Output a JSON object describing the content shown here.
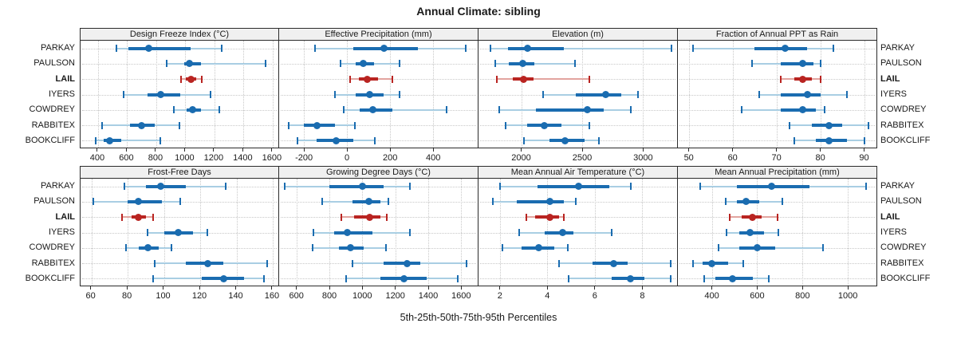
{
  "title": "Annual Climate: sibling",
  "caption": "5th-25th-50th-75th-95th Percentiles",
  "sites": [
    "PARKAY",
    "PAULSON",
    "LAIL",
    "IYERS",
    "COWDREY",
    "RABBITEX",
    "BOOKCLIFF"
  ],
  "highlight_site": "LAIL",
  "colors": {
    "series": "#1a6cb0",
    "series_light": "#a9cee3",
    "highlight": "#b92421",
    "highlight_light": "#e2a49f",
    "grid": "#c8c8c8",
    "header_bg": "#f0f0f0",
    "border": "#2b2b2b"
  },
  "percentile_order": [
    "5th",
    "25th",
    "50th",
    "75th",
    "95th"
  ],
  "chart_data": [
    {
      "type": "dot-interval",
      "title": "Design Freeze Index (°C)",
      "xlim": [
        280,
        1650
      ],
      "ticks": [
        400,
        600,
        800,
        1000,
        1200,
        1400,
        1600
      ],
      "series": [
        {
          "site": "PARKAY",
          "values": [
            525,
            610,
            750,
            1035,
            1250
          ]
        },
        {
          "site": "PAULSON",
          "values": [
            870,
            990,
            1030,
            1110,
            1550
          ]
        },
        {
          "site": "LAIL",
          "values": [
            970,
            1005,
            1040,
            1075,
            1110
          ]
        },
        {
          "site": "IYERS",
          "values": [
            575,
            740,
            830,
            965,
            1175
          ]
        },
        {
          "site": "COWDREY",
          "values": [
            920,
            1010,
            1050,
            1110,
            1235
          ]
        },
        {
          "site": "RABBITEX",
          "values": [
            430,
            620,
            700,
            790,
            960
          ]
        },
        {
          "site": "BOOKCLIFF",
          "values": [
            385,
            440,
            480,
            560,
            830
          ]
        }
      ]
    },
    {
      "type": "dot-interval",
      "title": "Effective Precipitation (mm)",
      "xlim": [
        -315,
        610
      ],
      "ticks": [
        -200,
        0,
        200,
        400
      ],
      "series": [
        {
          "site": "PARKAY",
          "values": [
            -150,
            30,
            170,
            330,
            550
          ]
        },
        {
          "site": "PAULSON",
          "values": [
            -30,
            40,
            75,
            125,
            245
          ]
        },
        {
          "site": "LAIL",
          "values": [
            15,
            55,
            95,
            145,
            210
          ]
        },
        {
          "site": "IYERS",
          "values": [
            -55,
            40,
            105,
            170,
            245
          ]
        },
        {
          "site": "COWDREY",
          "values": [
            -15,
            60,
            120,
            210,
            460
          ]
        },
        {
          "site": "RABBITEX",
          "values": [
            -270,
            -200,
            -140,
            -55,
            35
          ]
        },
        {
          "site": "BOOKCLIFF",
          "values": [
            -230,
            -140,
            -50,
            30,
            130
          ]
        }
      ]
    },
    {
      "type": "dot-interval",
      "title": "Elevation (m)",
      "xlim": [
        1650,
        3285
      ],
      "ticks": [
        2000,
        2500,
        3000
      ],
      "series": [
        {
          "site": "PARKAY",
          "values": [
            1750,
            1890,
            2050,
            2350,
            3230
          ]
        },
        {
          "site": "PAULSON",
          "values": [
            1790,
            1900,
            2010,
            2110,
            2440
          ]
        },
        {
          "site": "LAIL",
          "values": [
            1800,
            1930,
            2020,
            2100,
            2560
          ]
        },
        {
          "site": "IYERS",
          "values": [
            2180,
            2450,
            2690,
            2820,
            2960
          ]
        },
        {
          "site": "COWDREY",
          "values": [
            1820,
            2120,
            2540,
            2680,
            2900
          ]
        },
        {
          "site": "RABBITEX",
          "values": [
            1870,
            2050,
            2190,
            2330,
            2560
          ]
        },
        {
          "site": "BOOKCLIFF",
          "values": [
            2020,
            2230,
            2360,
            2520,
            2640
          ]
        }
      ]
    },
    {
      "type": "dot-interval",
      "title": "Fraction of Annual PPT as Rain",
      "xlim": [
        47.5,
        93
      ],
      "ticks": [
        50,
        60,
        70,
        80,
        90
      ],
      "series": [
        {
          "site": "PARKAY",
          "values": [
            51,
            65,
            72,
            77,
            83
          ]
        },
        {
          "site": "PAULSON",
          "values": [
            64.5,
            71,
            76,
            78.5,
            80
          ]
        },
        {
          "site": "LAIL",
          "values": [
            71,
            74,
            76,
            78,
            80
          ]
        },
        {
          "site": "IYERS",
          "values": [
            66,
            71,
            77,
            80,
            86
          ]
        },
        {
          "site": "COWDREY",
          "values": [
            62,
            71,
            76,
            79,
            81
          ]
        },
        {
          "site": "RABBITEX",
          "values": [
            73,
            78,
            82,
            85,
            91
          ]
        },
        {
          "site": "BOOKCLIFF",
          "values": [
            74,
            79,
            82,
            86,
            90
          ]
        }
      ]
    },
    {
      "type": "dot-interval",
      "title": "Frost-Free Days",
      "xlim": [
        54,
        164
      ],
      "ticks": [
        60,
        80,
        100,
        120,
        140,
        160
      ],
      "series": [
        {
          "site": "PARKAY",
          "values": [
            78,
            90,
            98,
            112,
            134
          ]
        },
        {
          "site": "PAULSON",
          "values": [
            61,
            80,
            86,
            99,
            109
          ]
        },
        {
          "site": "LAIL",
          "values": [
            77,
            82,
            86,
            90,
            94
          ]
        },
        {
          "site": "IYERS",
          "values": [
            91,
            100,
            108,
            116,
            124
          ]
        },
        {
          "site": "COWDREY",
          "values": [
            79,
            86,
            91,
            97,
            104
          ]
        },
        {
          "site": "RABBITEX",
          "values": [
            95,
            112,
            124,
            133,
            157
          ]
        },
        {
          "site": "BOOKCLIFF",
          "values": [
            94,
            121,
            133,
            144,
            155
          ]
        }
      ]
    },
    {
      "type": "dot-interval",
      "title": "Growing Degree Days (°C)",
      "xlim": [
        495,
        1705
      ],
      "ticks": [
        600,
        800,
        1000,
        1200,
        1400,
        1600
      ],
      "series": [
        {
          "site": "PARKAY",
          "values": [
            530,
            800,
            1000,
            1130,
            1290
          ]
        },
        {
          "site": "PAULSON",
          "values": [
            755,
            940,
            1040,
            1110,
            1160
          ]
        },
        {
          "site": "LAIL",
          "values": [
            870,
            950,
            1045,
            1110,
            1150
          ]
        },
        {
          "site": "IYERS",
          "values": [
            705,
            830,
            910,
            1060,
            1290
          ]
        },
        {
          "site": "COWDREY",
          "values": [
            700,
            860,
            930,
            1010,
            1145
          ]
        },
        {
          "site": "RABBITEX",
          "values": [
            940,
            1130,
            1270,
            1350,
            1630
          ]
        },
        {
          "site": "BOOKCLIFF",
          "values": [
            900,
            1110,
            1250,
            1390,
            1580
          ]
        }
      ]
    },
    {
      "type": "dot-interval",
      "title": "Mean Annual Air Temperature (°C)",
      "xlim": [
        1.1,
        9.5
      ],
      "ticks": [
        2,
        4,
        6,
        8
      ],
      "series": [
        {
          "site": "PARKAY",
          "values": [
            2.0,
            3.6,
            5.3,
            6.6,
            7.5
          ]
        },
        {
          "site": "PAULSON",
          "values": [
            1.7,
            2.7,
            4.1,
            4.7,
            5.2
          ]
        },
        {
          "site": "LAIL",
          "values": [
            3.1,
            3.5,
            4.1,
            4.5,
            4.7
          ]
        },
        {
          "site": "IYERS",
          "values": [
            2.8,
            3.9,
            4.65,
            5.1,
            6.7
          ]
        },
        {
          "site": "COWDREY",
          "values": [
            2.1,
            2.9,
            3.65,
            4.3,
            4.85
          ]
        },
        {
          "site": "RABBITEX",
          "values": [
            4.5,
            5.9,
            6.8,
            7.4,
            9.2
          ]
        },
        {
          "site": "BOOKCLIFF",
          "values": [
            4.9,
            6.7,
            7.5,
            8.1,
            9.2
          ]
        }
      ]
    },
    {
      "type": "dot-interval",
      "title": "Mean Annual Precipitation (mm)",
      "xlim": [
        250,
        1130
      ],
      "ticks": [
        400,
        600,
        800,
        1000
      ],
      "series": [
        {
          "site": "PARKAY",
          "values": [
            350,
            510,
            665,
            830,
            1080
          ]
        },
        {
          "site": "PAULSON",
          "values": [
            460,
            510,
            550,
            610,
            710
          ]
        },
        {
          "site": "LAIL",
          "values": [
            480,
            530,
            580,
            620,
            690
          ]
        },
        {
          "site": "IYERS",
          "values": [
            465,
            520,
            570,
            630,
            695
          ]
        },
        {
          "site": "COWDREY",
          "values": [
            430,
            520,
            600,
            680,
            890
          ]
        },
        {
          "site": "RABBITEX",
          "values": [
            315,
            360,
            400,
            470,
            540
          ]
        },
        {
          "site": "BOOKCLIFF",
          "values": [
            365,
            415,
            490,
            580,
            650
          ]
        }
      ]
    }
  ]
}
